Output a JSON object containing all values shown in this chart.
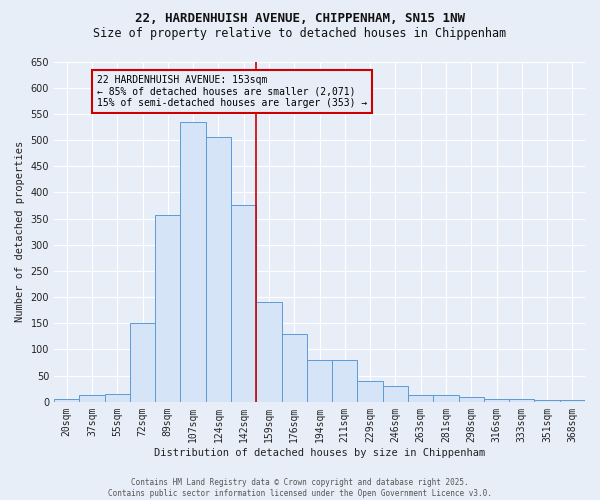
{
  "title_line1": "22, HARDENHUISH AVENUE, CHIPPENHAM, SN15 1NW",
  "title_line2": "Size of property relative to detached houses in Chippenham",
  "xlabel": "Distribution of detached houses by size in Chippenham",
  "ylabel": "Number of detached properties",
  "bar_labels": [
    "20sqm",
    "37sqm",
    "55sqm",
    "72sqm",
    "89sqm",
    "107sqm",
    "124sqm",
    "142sqm",
    "159sqm",
    "176sqm",
    "194sqm",
    "211sqm",
    "229sqm",
    "246sqm",
    "263sqm",
    "281sqm",
    "298sqm",
    "316sqm",
    "333sqm",
    "351sqm",
    "368sqm"
  ],
  "bar_values": [
    5,
    13,
    15,
    150,
    357,
    535,
    505,
    375,
    190,
    130,
    80,
    80,
    40,
    30,
    13,
    13,
    10,
    5,
    5,
    3,
    3
  ],
  "bar_color": "#d6e4f7",
  "bar_edge_color": "#5b9bd5",
  "vline_x_idx": 7.5,
  "vline_color": "#cc0000",
  "annotation_title": "22 HARDENHUISH AVENUE: 153sqm",
  "annotation_line1": "← 85% of detached houses are smaller (2,071)",
  "annotation_line2": "15% of semi-detached houses are larger (353) →",
  "annotation_box_edgecolor": "#cc0000",
  "ylim": [
    0,
    650
  ],
  "yticks": [
    0,
    50,
    100,
    150,
    200,
    250,
    300,
    350,
    400,
    450,
    500,
    550,
    600,
    650
  ],
  "footer_line1": "Contains HM Land Registry data © Crown copyright and database right 2025.",
  "footer_line2": "Contains public sector information licensed under the Open Government Licence v3.0.",
  "background_color": "#e8eef8",
  "grid_color": "#ffffff",
  "title1_fontsize": 9,
  "title2_fontsize": 8.5,
  "xlabel_fontsize": 7.5,
  "ylabel_fontsize": 7.5,
  "tick_fontsize": 7,
  "annotation_fontsize": 7,
  "footer_fontsize": 5.5
}
